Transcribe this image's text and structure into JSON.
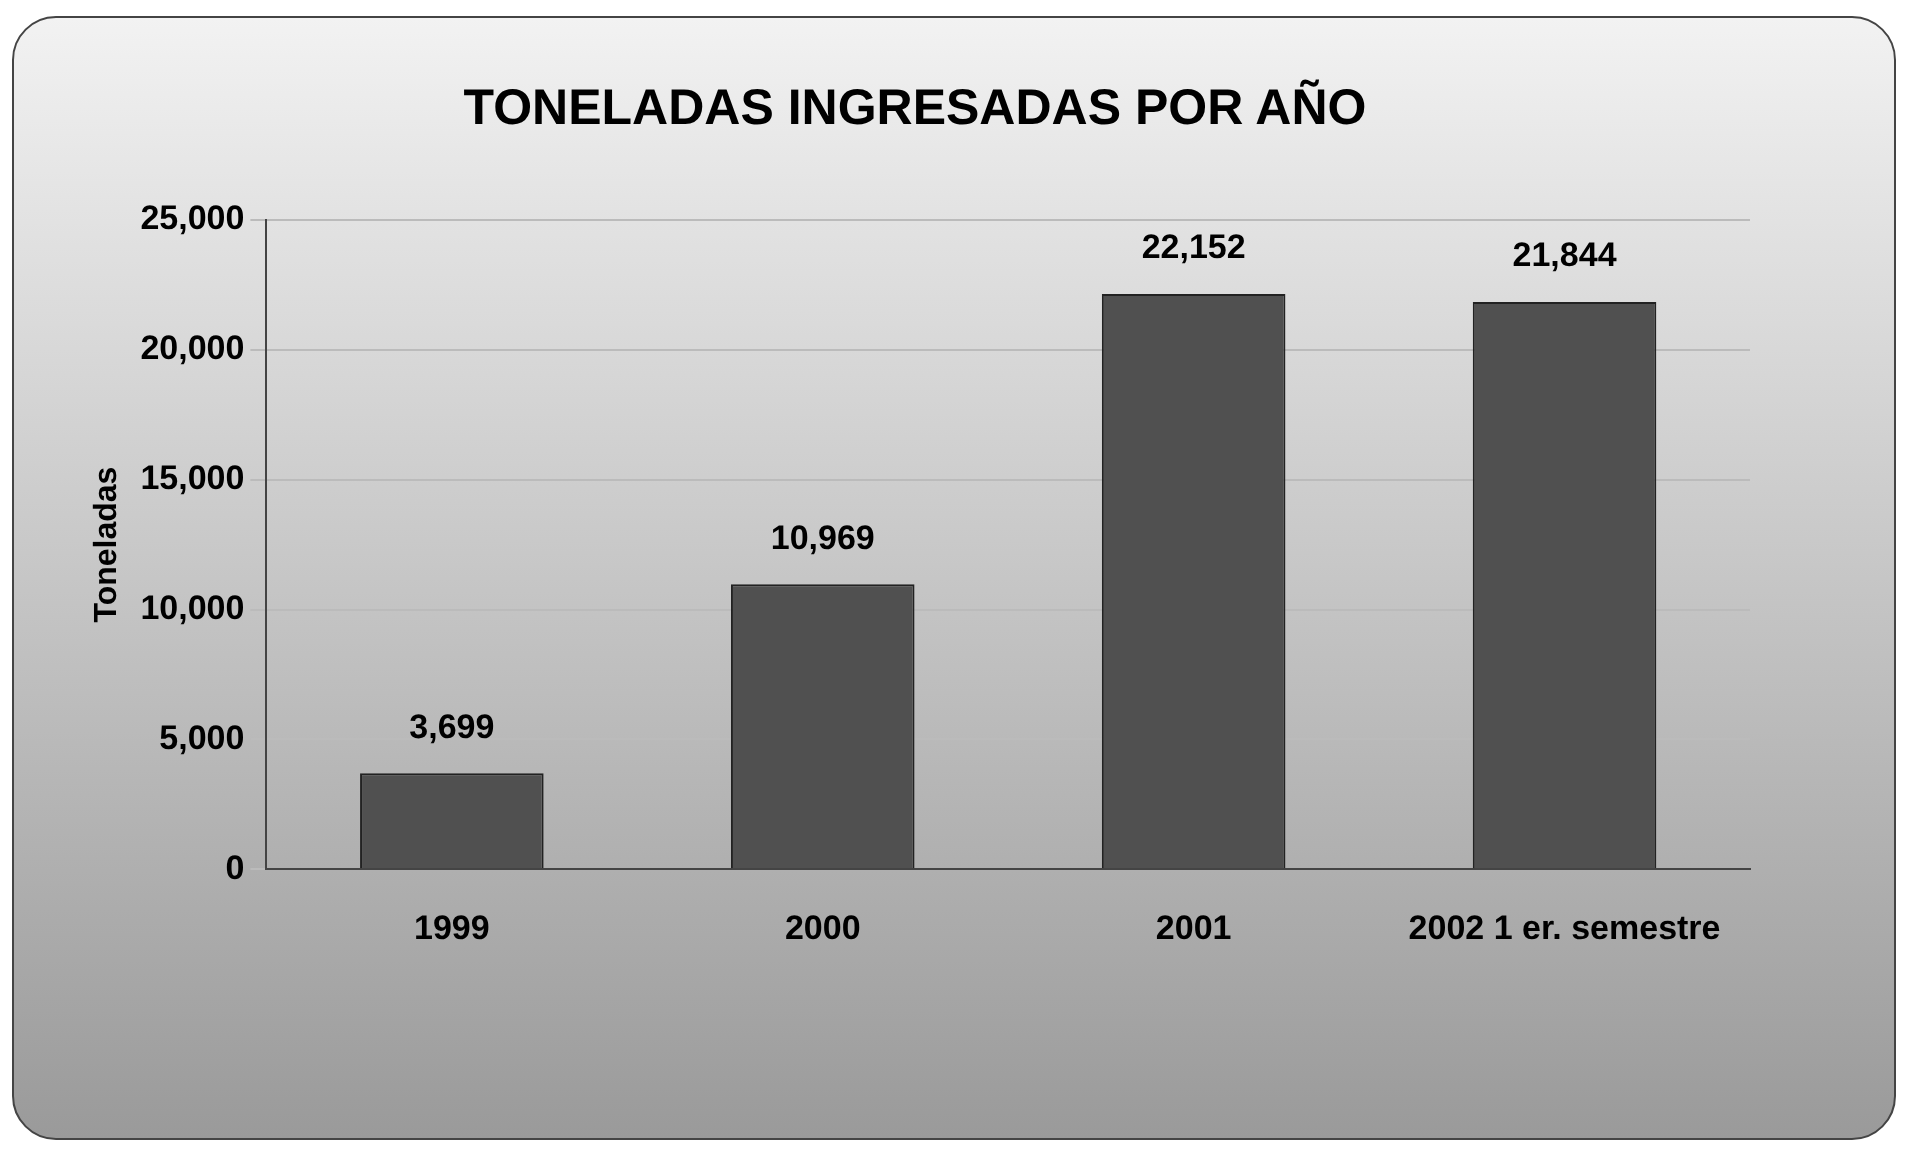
{
  "chart_data": {
    "type": "bar",
    "title": "TONELADAS INGRESADAS POR AÑO",
    "ylabel": "Toneladas",
    "categories": [
      "1999",
      "2000",
      "2001",
      "2002 1 er. semestre"
    ],
    "values": [
      3699,
      10969,
      22152,
      21844
    ],
    "value_labels": [
      "3,699",
      "10,969",
      "22,152",
      "21,844"
    ],
    "color": "#505050",
    "ylim": [
      0,
      25000
    ],
    "yticks": [
      {
        "value": 0,
        "label": "0"
      },
      {
        "value": 5000,
        "label": "5,000"
      },
      {
        "value": 10000,
        "label": "10,000"
      },
      {
        "value": 15000,
        "label": "15,000"
      },
      {
        "value": 20000,
        "label": "20,000"
      },
      {
        "value": 25000,
        "label": "25,000"
      }
    ],
    "grid": "y",
    "legend": false
  }
}
